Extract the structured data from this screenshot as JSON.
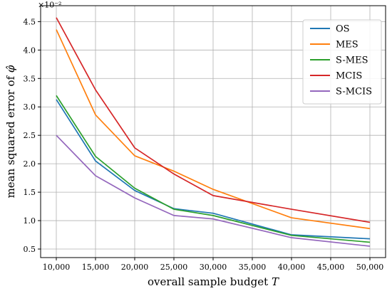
{
  "chart_data": {
    "type": "line",
    "xlabel": "overall sample budget T",
    "ylabel": "mean squared error of φ̂",
    "y_scale_label": "×10⁻²",
    "x": [
      10000,
      15000,
      20000,
      25000,
      30000,
      40000,
      50000
    ],
    "x_tick_labels": [
      "10,000",
      "15,000",
      "20,000",
      "25,000",
      "30,000",
      "35,000",
      "40,000",
      "45,000",
      "50,000"
    ],
    "x_ticks": [
      10000,
      15000,
      20000,
      25000,
      30000,
      35000,
      40000,
      45000,
      50000
    ],
    "y_tick_labels": [
      "0.5",
      "1.0",
      "1.5",
      "2.0",
      "2.5",
      "3.0",
      "3.5",
      "4.0",
      "4.5"
    ],
    "y_ticks": [
      0.5,
      1.0,
      1.5,
      2.0,
      2.5,
      3.0,
      3.5,
      4.0,
      4.5
    ],
    "xlim": [
      8000,
      52000
    ],
    "ylim": [
      0.35,
      4.78
    ],
    "grid": true,
    "legend_position": "top-right",
    "series": [
      {
        "name": "OS",
        "color": "#1f77b4",
        "values": [
          3.13,
          2.05,
          1.53,
          1.21,
          1.13,
          0.75,
          0.68
        ]
      },
      {
        "name": "MES",
        "color": "#ff7f0e",
        "values": [
          4.36,
          2.86,
          2.14,
          1.87,
          1.55,
          1.05,
          0.86
        ]
      },
      {
        "name": "S-MES",
        "color": "#2ca02c",
        "values": [
          3.2,
          2.13,
          1.57,
          1.2,
          1.09,
          0.74,
          0.62
        ]
      },
      {
        "name": "MCIS",
        "color": "#d62728",
        "values": [
          4.57,
          3.3,
          2.28,
          1.82,
          1.44,
          1.2,
          0.97
        ]
      },
      {
        "name": "S-MCIS",
        "color": "#9467bd",
        "values": [
          2.5,
          1.79,
          1.4,
          1.09,
          1.03,
          0.7,
          0.55
        ]
      }
    ]
  }
}
